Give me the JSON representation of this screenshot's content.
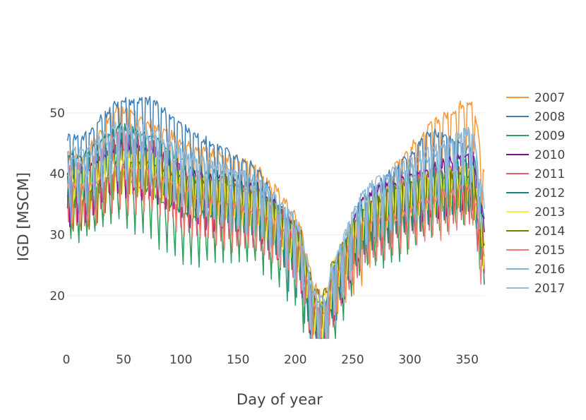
{
  "chart_data": {
    "type": "line",
    "title": "",
    "xlabel": "Day of year",
    "ylabel": "IGD [MSCM]",
    "xlim": [
      0,
      365
    ],
    "ylim": [
      12,
      56
    ],
    "xticks": [
      0,
      50,
      100,
      150,
      200,
      250,
      300,
      350
    ],
    "yticks": [
      20,
      30,
      40,
      50
    ],
    "grid": true,
    "legend_placement": "right",
    "x_sampling": "daily values, day 1 to 365",
    "series": [
      {
        "name": "2007",
        "color": "#f7973a",
        "level": [
          43,
          51,
          48,
          45,
          43,
          41,
          34,
          24,
          30,
          42,
          48,
          52
        ],
        "weekday_dip": 8
      },
      {
        "name": "2008",
        "color": "#3f7fb5",
        "level": [
          46,
          52,
          52,
          47,
          44,
          41,
          30,
          22,
          36,
          41,
          47,
          44
        ],
        "weekday_dip": 10
      },
      {
        "name": "2009",
        "color": "#2ca25f",
        "level": [
          37,
          40,
          37,
          33,
          34,
          33,
          27,
          17,
          32,
          34,
          38,
          40
        ],
        "weekday_dip": 8
      },
      {
        "name": "2010",
        "color": "#7b0f8f",
        "level": [
          40,
          45,
          44,
          40,
          39,
          38,
          32,
          21,
          36,
          39,
          41,
          43
        ],
        "weekday_dip": 8
      },
      {
        "name": "2011",
        "color": "#e05d6f",
        "level": [
          41,
          47,
          45,
          40,
          38,
          37,
          32,
          22,
          34,
          38,
          40,
          41
        ],
        "weekday_dip": 9
      },
      {
        "name": "2012",
        "color": "#198479",
        "level": [
          43,
          48,
          46,
          41,
          40,
          38,
          32,
          22,
          35,
          38,
          40,
          42
        ],
        "weekday_dip": 8
      },
      {
        "name": "2013",
        "color": "#f2f23c",
        "level": [
          40,
          43,
          43,
          40,
          39,
          37,
          32,
          23,
          35,
          38,
          40,
          41
        ],
        "weekday_dip": 6
      },
      {
        "name": "2014",
        "color": "#7a7a00",
        "level": [
          36,
          42,
          42,
          39,
          39,
          37,
          32,
          24,
          34,
          38,
          40,
          40
        ],
        "weekday_dip": 6
      },
      {
        "name": "2015",
        "color": "#f08070",
        "level": [
          38,
          41,
          40,
          37,
          35,
          34,
          30,
          21,
          32,
          33,
          36,
          38
        ],
        "weekday_dip": 7
      },
      {
        "name": "2016",
        "color": "#7ab3d9",
        "level": [
          42,
          47,
          46,
          43,
          41,
          39,
          33,
          22,
          37,
          40,
          43,
          47
        ],
        "weekday_dip": 9
      },
      {
        "name": "2017",
        "color": "#9bbad2",
        "level": [
          44,
          48,
          47,
          43,
          41,
          39,
          33,
          23,
          37,
          41,
          44,
          47
        ],
        "weekday_dip": 9
      }
    ]
  }
}
